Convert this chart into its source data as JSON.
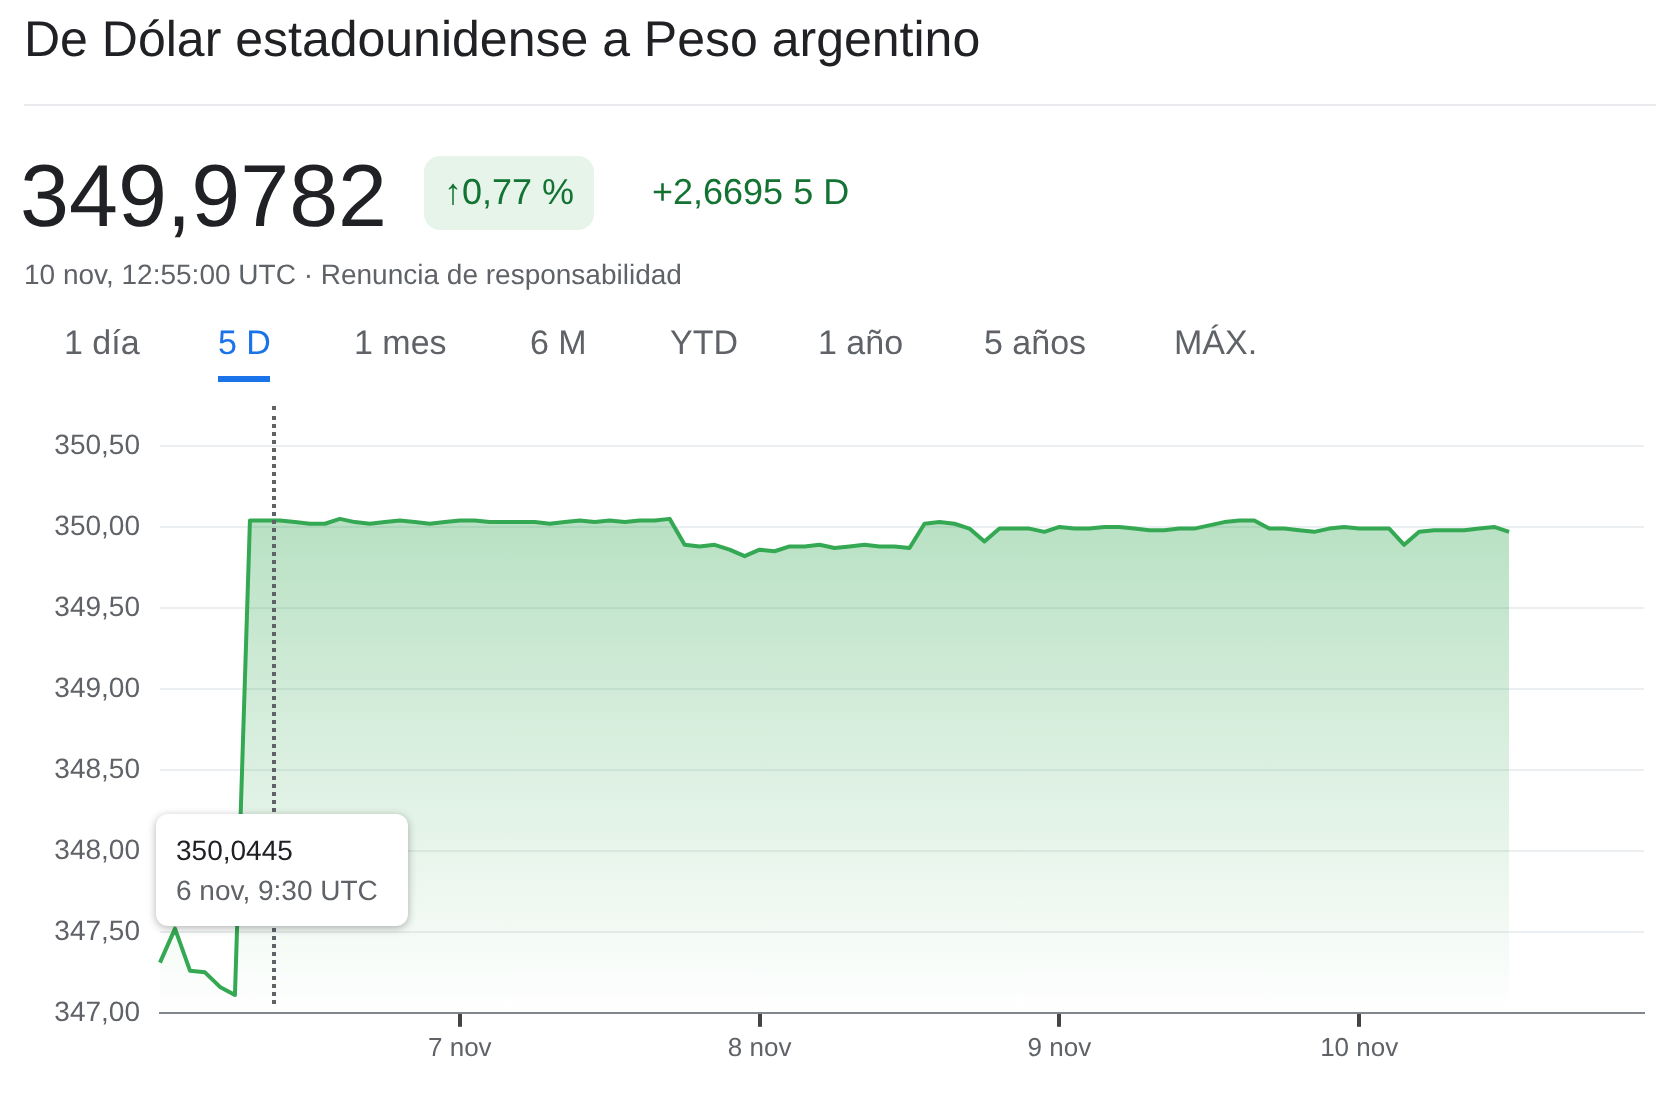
{
  "chart_data": {
    "type": "area",
    "title": "De Dólar estadounidense a Peso argentino",
    "annotations": [
      "349,9782",
      "↑0,77 %",
      "+2,6695 5 D",
      "10 nov, 12:55:00 UTC · Renuncia de responsabilidad",
      "1 día",
      "5 D",
      "1 mes",
      "6 M",
      "YTD",
      "1 año",
      "5 años",
      "MÁX.",
      "350,0445",
      "6 nov, 9:30 UTC"
    ],
    "categories": [
      null,
      null,
      null,
      null,
      null,
      null,
      null,
      null,
      null,
      null,
      null,
      null,
      null,
      null,
      null,
      null,
      null,
      null,
      null,
      null,
      "7 nov",
      null,
      null,
      null,
      null,
      null,
      null,
      null,
      null,
      null,
      null,
      null,
      null,
      null,
      null,
      null,
      null,
      null,
      null,
      null,
      "8 nov",
      null,
      null,
      null,
      null,
      null,
      null,
      null,
      null,
      null,
      null,
      null,
      null,
      null,
      null,
      null,
      null,
      null,
      null,
      null,
      "9 nov",
      null,
      null,
      null,
      null,
      null,
      null,
      null,
      null,
      null,
      null,
      null,
      null,
      null,
      null,
      null,
      null,
      null,
      null,
      null,
      "10 nov",
      null,
      null,
      null,
      null,
      null,
      null,
      null,
      null,
      null,
      null,
      null,
      null,
      null,
      null,
      null,
      null,
      null,
      null,
      null
    ],
    "series": [
      {
        "color": "#34a853",
        "values": [
          347.31,
          347.52,
          347.26,
          347.25,
          347.16,
          347.11,
          350.04,
          350.04,
          350.04,
          350.03,
          350.02,
          350.02,
          350.05,
          350.03,
          350.02,
          350.03,
          350.04,
          350.03,
          350.02,
          350.03,
          350.04,
          350.04,
          350.03,
          350.03,
          350.03,
          350.03,
          350.02,
          350.03,
          350.04,
          350.03,
          350.04,
          350.03,
          350.04,
          350.04,
          350.05,
          349.89,
          349.88,
          349.89,
          349.86,
          349.82,
          349.86,
          349.85,
          349.88,
          349.88,
          349.89,
          349.87,
          349.88,
          349.89,
          349.88,
          349.88,
          349.87,
          350.02,
          350.03,
          350.02,
          349.99,
          349.91,
          349.99,
          349.99,
          349.99,
          349.97,
          350.0,
          349.99,
          349.99,
          350.0,
          350.0,
          349.99,
          349.98,
          349.98,
          349.99,
          349.99,
          350.01,
          350.03,
          350.04,
          350.04,
          349.99,
          349.99,
          349.98,
          349.97,
          349.99,
          350.0,
          349.99,
          349.99,
          349.99,
          349.89,
          349.97,
          349.98,
          349.98,
          349.98,
          349.99,
          350.0,
          349.97,
          null,
          null,
          null,
          null,
          null,
          null,
          null,
          null,
          null
        ]
      }
    ],
    "ylim": [
      347,
      350.5
    ],
    "yticks": [
      {
        "value": 347,
        "label": "347,00"
      },
      {
        "value": 347.5,
        "label": "347,50"
      },
      {
        "value": 348,
        "label": "348,00"
      },
      {
        "value": 348.5,
        "label": "348,50"
      },
      {
        "value": 349,
        "label": "349,00"
      },
      {
        "value": 349.5,
        "label": "349,50"
      },
      {
        "value": 350,
        "label": "350,00"
      },
      {
        "value": 350.5,
        "label": "350,50"
      }
    ],
    "grid": "y",
    "legend": false,
    "marker": "none",
    "line_style": "solid"
  }
}
